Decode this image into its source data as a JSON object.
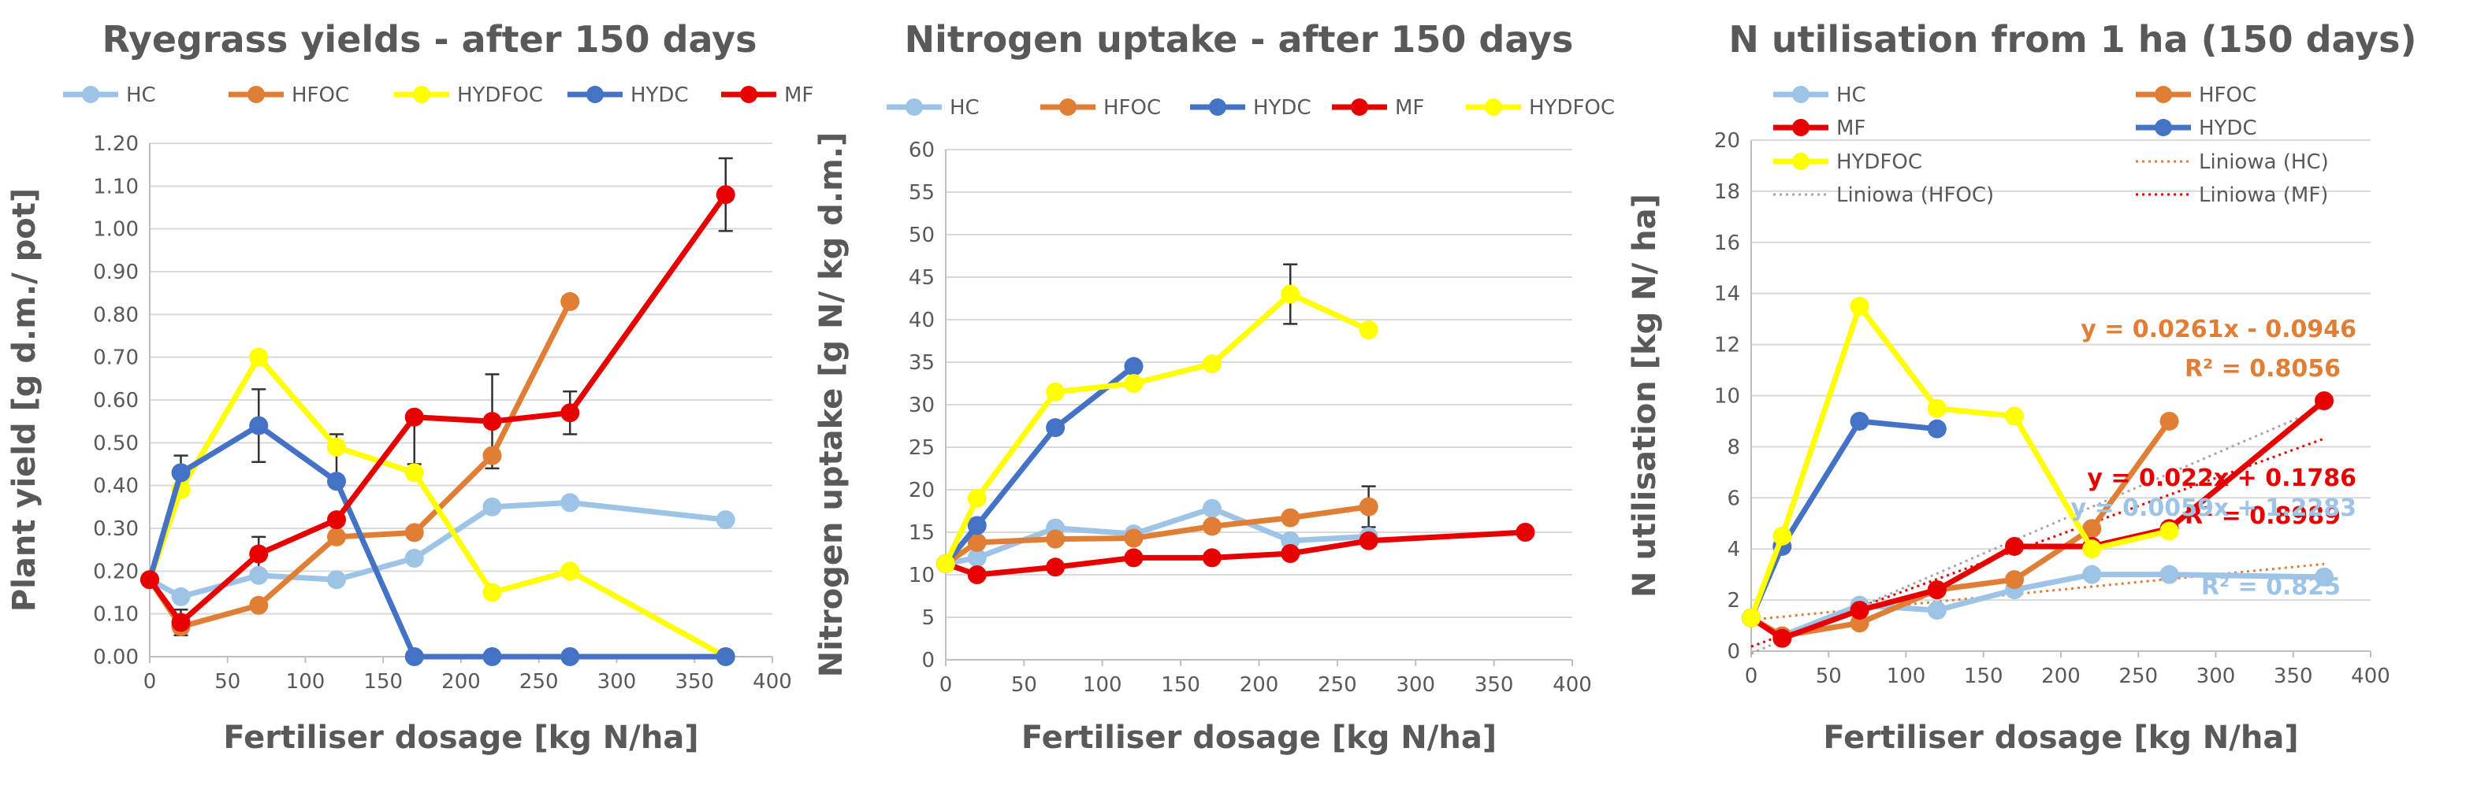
{
  "colors": {
    "HC": "#9dc3e6",
    "HFOC": "#e07e35",
    "HYDFOC": "#ffff00",
    "HYDC": "#4472c4",
    "MF": "#e60000"
  },
  "chart_data": [
    {
      "type": "line",
      "title": "Ryegrass yields - after 150 days",
      "xlabel": "Fertiliser dosage  [kg N/ha]",
      "ylabel": "Plant yield [g d.m./ pot]",
      "xlim": [
        0,
        400
      ],
      "ylim": [
        0,
        1.2
      ],
      "xticks": [
        "0",
        "50",
        "100",
        "150",
        "200",
        "250",
        "300",
        "350",
        "400"
      ],
      "yticks": [
        "0.00",
        "0.10",
        "0.20",
        "0.30",
        "0.40",
        "0.50",
        "0.60",
        "0.70",
        "0.80",
        "0.90",
        "1.00",
        "1.10",
        "1.20"
      ],
      "legend": [
        "HC",
        "HFOC",
        "HYDFOC",
        "HYDC",
        "MF"
      ],
      "series": [
        {
          "name": "HC",
          "x": [
            0,
            20,
            70,
            120,
            170,
            220,
            270,
            370
          ],
          "y": [
            0.18,
            0.14,
            0.19,
            0.18,
            0.23,
            0.35,
            0.36,
            0.32
          ]
        },
        {
          "name": "HFOC",
          "x": [
            0,
            20,
            70,
            120,
            170,
            220,
            270
          ],
          "y": [
            0.18,
            0.07,
            0.12,
            0.28,
            0.29,
            0.47,
            0.83
          ]
        },
        {
          "name": "HYDFOC",
          "x": [
            0,
            20,
            70,
            120,
            170,
            220,
            270,
            370
          ],
          "y": [
            0.18,
            0.39,
            0.7,
            0.49,
            0.43,
            0.15,
            0.2,
            0.0
          ]
        },
        {
          "name": "HYDC",
          "x": [
            0,
            20,
            70,
            120,
            170,
            220,
            270,
            370
          ],
          "y": [
            0.18,
            0.43,
            0.54,
            0.41,
            0.0,
            0.0,
            0.0,
            0.0
          ]
        },
        {
          "name": "MF",
          "x": [
            0,
            20,
            70,
            120,
            170,
            220,
            270,
            370
          ],
          "y": [
            0.18,
            0.08,
            0.24,
            0.32,
            0.56,
            0.55,
            0.57,
            1.08
          ]
        }
      ],
      "errorbars": [
        {
          "x": 20,
          "y": 0.43,
          "err": 0.04
        },
        {
          "x": 20,
          "y": 0.08,
          "err": 0.03
        },
        {
          "x": 70,
          "y": 0.54,
          "err": 0.085
        },
        {
          "x": 70,
          "y": 0.24,
          "err": 0.04
        },
        {
          "x": 120,
          "y": 0.47,
          "err": 0.05
        },
        {
          "x": 170,
          "y": 0.5,
          "err": 0.05
        },
        {
          "x": 220,
          "y": 0.55,
          "err": 0.11
        },
        {
          "x": 270,
          "y": 0.57,
          "err": 0.05
        },
        {
          "x": 370,
          "y": 1.08,
          "err": 0.085
        }
      ],
      "equations": []
    },
    {
      "type": "line",
      "title": "Nitrogen uptake - after 150 days",
      "xlabel": "Fertiliser dosage  [kg N/ha]",
      "ylabel": "Nitrogen uptake [g N/ kg d.m.]",
      "xlim": [
        0,
        400
      ],
      "ylim": [
        0,
        60
      ],
      "xticks": [
        "0",
        "50",
        "100",
        "150",
        "200",
        "250",
        "300",
        "350",
        "400"
      ],
      "yticks": [
        "0",
        "5",
        "10",
        "15",
        "20",
        "25",
        "30",
        "35",
        "40",
        "45",
        "50",
        "55",
        "60"
      ],
      "legend": [
        "HC",
        "HFOC",
        "HYDC",
        "MF",
        "HYDFOC"
      ],
      "series": [
        {
          "name": "HC",
          "x": [
            0,
            20,
            70,
            120,
            170,
            220,
            270
          ],
          "y": [
            11.3,
            12.0,
            15.5,
            14.8,
            17.8,
            14.0,
            14.5
          ]
        },
        {
          "name": "HFOC",
          "x": [
            0,
            20,
            70,
            120,
            170,
            220,
            270
          ],
          "y": [
            11.3,
            13.8,
            14.2,
            14.3,
            15.7,
            16.7,
            18.0
          ]
        },
        {
          "name": "HYDC",
          "x": [
            0,
            20,
            70,
            120
          ],
          "y": [
            11.3,
            15.8,
            27.3,
            34.5
          ]
        },
        {
          "name": "MF",
          "x": [
            0,
            20,
            70,
            120,
            170,
            220,
            270,
            370
          ],
          "y": [
            11.3,
            10.0,
            10.9,
            12.0,
            12.0,
            12.5,
            14.0,
            15.0
          ]
        },
        {
          "name": "HYDFOC",
          "x": [
            0,
            20,
            70,
            120,
            170,
            220,
            270
          ],
          "y": [
            11.3,
            19.0,
            31.5,
            32.5,
            34.8,
            43.0,
            38.8
          ]
        }
      ],
      "errorbars": [
        {
          "x": 220,
          "y": 43.0,
          "err": 3.5
        },
        {
          "x": 270,
          "y": 18.0,
          "err": 2.4
        }
      ],
      "equations": []
    },
    {
      "type": "line",
      "title": "N utilisation from 1 ha (150 days)",
      "xlabel": "Fertiliser dosage  [kg N/ha]",
      "ylabel": "N utilisation  [kg N/ ha]",
      "xlim": [
        0,
        400
      ],
      "ylim": [
        0,
        20
      ],
      "xticks": [
        "0",
        "50",
        "100",
        "150",
        "200",
        "250",
        "300",
        "350",
        "400"
      ],
      "yticks": [
        "0",
        "2",
        "4",
        "6",
        "8",
        "10",
        "12",
        "14",
        "16",
        "18",
        "20"
      ],
      "legend": [
        "HC",
        "HFOC",
        "MF",
        "HYDC",
        "HYDFOC",
        "Liniowa (HC)",
        "Liniowa (HFOC)",
        "Liniowa (MF)"
      ],
      "series": [
        {
          "name": "HC",
          "x": [
            0,
            20,
            70,
            120,
            170,
            220,
            270,
            370
          ],
          "y": [
            1.3,
            0.6,
            1.8,
            1.6,
            2.4,
            3.0,
            3.0,
            2.9
          ]
        },
        {
          "name": "HFOC",
          "x": [
            0,
            20,
            70,
            120,
            170,
            220,
            270
          ],
          "y": [
            1.3,
            0.6,
            1.1,
            2.4,
            2.8,
            4.8,
            9.0
          ]
        },
        {
          "name": "MF",
          "x": [
            0,
            20,
            70,
            120,
            170,
            220,
            270,
            370
          ],
          "y": [
            1.3,
            0.5,
            1.6,
            2.4,
            4.1,
            4.1,
            4.8,
            9.8
          ]
        },
        {
          "name": "HYDC",
          "x": [
            0,
            20,
            70,
            120
          ],
          "y": [
            1.3,
            4.1,
            9.0,
            8.7
          ]
        },
        {
          "name": "HYDFOC",
          "x": [
            0,
            20,
            70,
            120,
            170,
            220,
            270
          ],
          "y": [
            1.3,
            4.5,
            13.5,
            9.5,
            9.2,
            4.0,
            4.7
          ]
        }
      ],
      "trendlines": [
        {
          "name": "Liniowa (HC)",
          "series": "HC",
          "slope": 0.0059,
          "intercept": 1.2283,
          "xrange": [
            0,
            370
          ]
        },
        {
          "name": "Liniowa (HFOC)",
          "series": "HFOC",
          "slope": 0.0261,
          "intercept": -0.0946,
          "xrange": [
            0,
            370
          ]
        },
        {
          "name": "Liniowa (MF)",
          "series": "MF",
          "slope": 0.022,
          "intercept": 0.1786,
          "xrange": [
            0,
            370
          ]
        }
      ],
      "equations": [
        {
          "series": "HFOC",
          "eq": "y = 0.0261x - 0.0946",
          "r2": "R² = 0.8056"
        },
        {
          "series": "MF",
          "eq": "y = 0.022x + 0.1786",
          "r2": "R² = 0.8989"
        },
        {
          "series": "HC",
          "eq": "y = 0.0059x + 1.2283",
          "r2": "R² = 0.825"
        }
      ],
      "errorbars": []
    }
  ]
}
